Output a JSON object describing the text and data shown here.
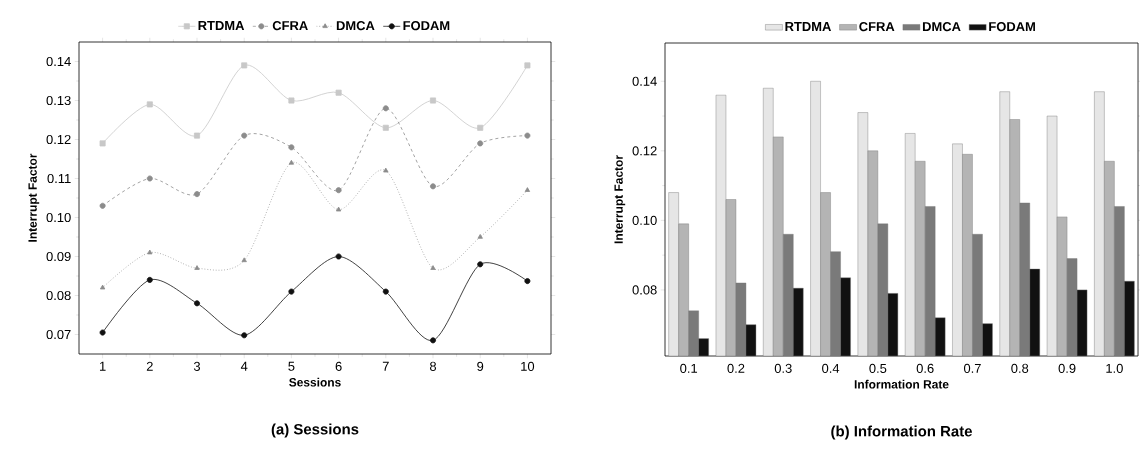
{
  "chart_data": [
    {
      "type": "line",
      "title": "(a) Sessions",
      "xlabel": "Sessions",
      "ylabel": "Interrupt Factor",
      "x": [
        1,
        2,
        3,
        4,
        5,
        6,
        7,
        8,
        9,
        10
      ],
      "xlim": [
        0.5,
        10.5
      ],
      "xticks": [
        1,
        2,
        3,
        4,
        5,
        6,
        7,
        8,
        9,
        10
      ],
      "ylim": [
        0.065,
        0.145
      ],
      "yticks": [
        0.07,
        0.08,
        0.09,
        {
          "value": 0.1,
          "label": "0.10"
        },
        0.11,
        0.12,
        0.13,
        0.14
      ],
      "legend": "top",
      "series": [
        {
          "name": "RTDMA",
          "color": "#c8c8c8",
          "marker": "square",
          "line_style": "solid",
          "values": [
            0.119,
            0.129,
            0.121,
            0.139,
            0.13,
            0.132,
            0.123,
            0.13,
            0.123,
            0.139
          ]
        },
        {
          "name": "CFRA",
          "color": "#8c8c8c",
          "marker": "circle",
          "line_style": "dashed",
          "values": [
            0.103,
            0.11,
            0.106,
            0.121,
            0.118,
            0.107,
            0.128,
            0.108,
            0.119,
            0.121
          ]
        },
        {
          "name": "DMCA",
          "color": "#8c8c8c",
          "marker": "triangle",
          "line_style": "dotted",
          "values": [
            0.082,
            0.091,
            0.087,
            0.089,
            0.114,
            0.102,
            0.112,
            0.087,
            0.095,
            0.107
          ]
        },
        {
          "name": "FODAM",
          "color": "#111111",
          "marker": "circle",
          "line_style": "solid",
          "values": [
            0.0705,
            0.084,
            0.078,
            0.0698,
            0.081,
            0.09,
            0.081,
            0.0685,
            0.088,
            0.0837
          ]
        }
      ]
    },
    {
      "type": "bar",
      "title": "(b) Information Rate",
      "xlabel": "Information Rate",
      "ylabel": "Interrupt Factor",
      "categories": [
        "0.1",
        "0.2",
        "0.3",
        "0.4",
        "0.5",
        "0.6",
        "0.7",
        "0.8",
        "0.9",
        "1.0"
      ],
      "ylim": [
        0.061,
        0.151
      ],
      "yticks": [
        0.08,
        {
          "value": 0.1,
          "label": "0.10"
        },
        0.12,
        0.14
      ],
      "legend": "top",
      "series": [
        {
          "name": "RTDMA",
          "color": "#e6e6e6",
          "values": [
            0.108,
            0.136,
            0.138,
            0.14,
            0.131,
            0.125,
            0.122,
            0.137,
            0.13,
            0.137
          ]
        },
        {
          "name": "CFRA",
          "color": "#b4b4b4",
          "values": [
            0.099,
            0.106,
            0.124,
            0.108,
            0.12,
            0.117,
            0.119,
            0.129,
            0.101,
            0.117
          ]
        },
        {
          "name": "DMCA",
          "color": "#7a7a7a",
          "values": [
            0.074,
            0.082,
            0.096,
            0.091,
            0.099,
            0.104,
            0.096,
            0.105,
            0.089,
            0.104
          ]
        },
        {
          "name": "FODAM",
          "color": "#111111",
          "values": [
            0.066,
            0.07,
            0.0805,
            0.0835,
            0.079,
            0.072,
            0.0703,
            0.086,
            0.08,
            0.0825
          ]
        }
      ]
    }
  ]
}
